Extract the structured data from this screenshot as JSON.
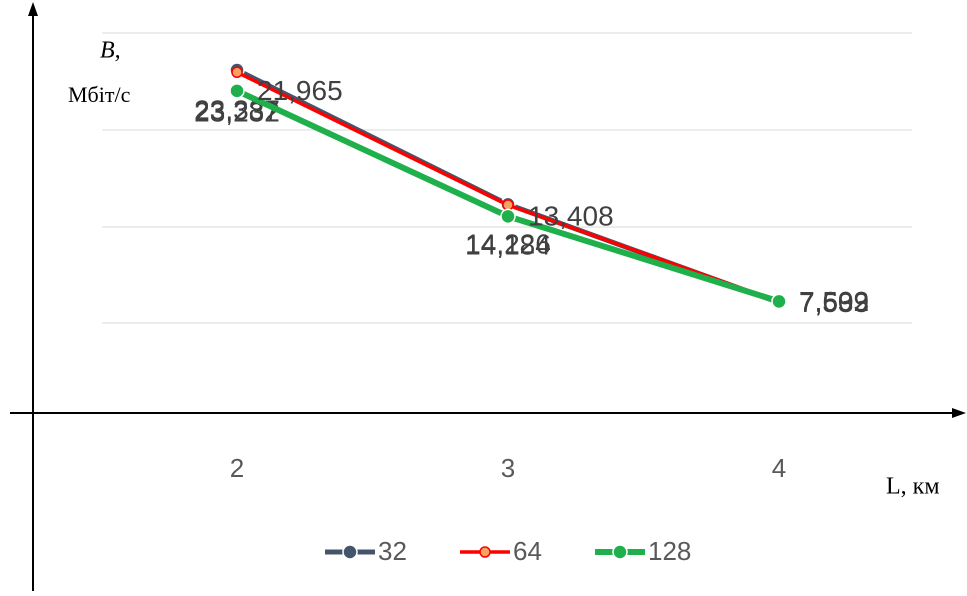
{
  "chart_data": {
    "type": "line",
    "categories": [
      "2",
      "3",
      "4"
    ],
    "series": [
      {
        "name": "32",
        "color": "#44546a",
        "values": [
          23.387,
          14.226,
          7.533
        ],
        "value_labels": [
          "23,387",
          "14,226",
          "7,533"
        ]
      },
      {
        "name": "64",
        "color": "#ff0000",
        "values": [
          23.232,
          14.184,
          7.592
        ],
        "value_labels": [
          "23,232",
          "14,184",
          "7,592"
        ]
      },
      {
        "name": "128",
        "color": "#1fb04b",
        "values": [
          21.965,
          13.408,
          7.609
        ],
        "value_labels": [
          "21,965",
          "13,408",
          "7,609"
        ]
      }
    ],
    "ylabel": "B,",
    "yunit": "Мбіт/с",
    "xlabel": "L, км",
    "legend": "bottom"
  }
}
